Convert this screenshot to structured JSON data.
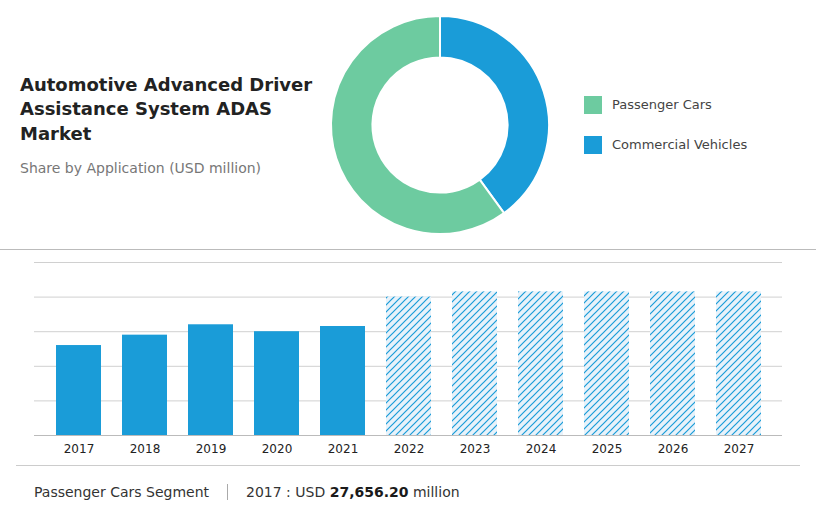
{
  "chart_data": [
    {
      "type": "donut",
      "title": "Automotive Advanced Driver\nAssistance System ADAS Market",
      "subtitle": "Share by Application (USD million)",
      "categories": [
        "Commercial Vehicles",
        "Passenger Cars"
      ],
      "values": [
        40,
        60
      ],
      "colors": [
        "#1a9cd8",
        "#6dcba0"
      ],
      "legend": "right"
    },
    {
      "type": "bar",
      "categories": [
        "2017",
        "2018",
        "2019",
        "2020",
        "2021",
        "2022",
        "2023",
        "2024",
        "2025",
        "2026",
        "2027"
      ],
      "values": [
        0.52,
        0.58,
        0.64,
        0.6,
        0.63,
        0.8,
        0.83,
        0.83,
        0.83,
        0.83,
        0.83
      ],
      "color": "#1a9cd8",
      "colors": [
        "#1a9cd8",
        "#1a9cd8",
        "#1a9cd8",
        "#1a9cd8",
        "#1a9cd8",
        "#e8f2fa",
        "#e8f2fa",
        "#e8f2fa",
        "#e8f2fa",
        "#e8f2fa",
        "#e8f2fa"
      ],
      "ylim": [
        0,
        1
      ],
      "yticks": [
        0.2,
        0.4,
        0.6,
        0.8,
        1.0
      ],
      "grid": true,
      "tick_labels": "x",
      "annotations": [
        "Passenger Cars Segment",
        "2017 : USD ",
        "27,656.20",
        " million"
      ]
    }
  ]
}
